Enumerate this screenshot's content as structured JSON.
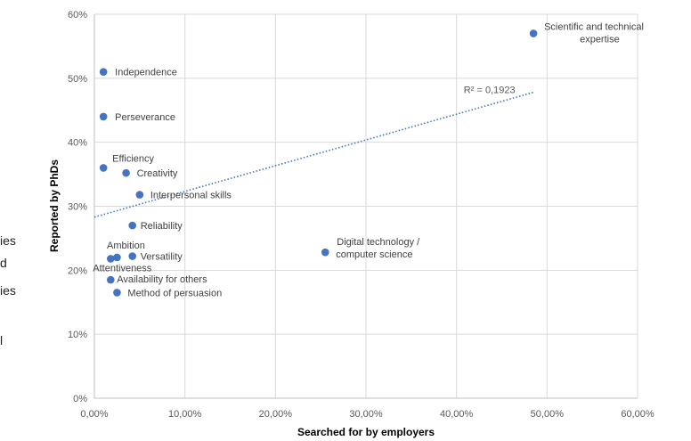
{
  "chart_data": {
    "type": "scatter",
    "xlabel": "Searched for by employers",
    "ylabel": "Reported by PhDs",
    "xlim": [
      0,
      60
    ],
    "ylim": [
      0,
      60
    ],
    "x_ticks": [
      "0,00%",
      "10,00%",
      "20,00%",
      "30,00%",
      "40,00%",
      "50,00%",
      "60,00%"
    ],
    "y_ticks": [
      "0%",
      "10%",
      "20%",
      "30%",
      "40%",
      "50%",
      "60%"
    ],
    "grid": true,
    "legend": "none",
    "color": "#4472C4",
    "points": [
      {
        "label": "Scientific and technical expertise",
        "x": 48.5,
        "y": 57.0
      },
      {
        "label": "Independence",
        "x": 1.0,
        "y": 51.0
      },
      {
        "label": "Perseverance",
        "x": 1.0,
        "y": 44.0
      },
      {
        "label": "Efficiency",
        "x": 1.0,
        "y": 36.0
      },
      {
        "label": "Creativity",
        "x": 3.5,
        "y": 35.2
      },
      {
        "label": "Interpersonal skills",
        "x": 5.0,
        "y": 31.8
      },
      {
        "label": "Reliability",
        "x": 4.2,
        "y": 27.0
      },
      {
        "label": "Ambition",
        "x": 2.5,
        "y": 22.0
      },
      {
        "label": "Versatility",
        "x": 4.2,
        "y": 22.2
      },
      {
        "label": "Attentiveness",
        "x": 1.8,
        "y": 21.8
      },
      {
        "label": "Availability for others",
        "x": 1.8,
        "y": 18.5
      },
      {
        "label": "Method of persuasion",
        "x": 2.5,
        "y": 16.5
      },
      {
        "label": "Digital technology / computer science",
        "x": 25.5,
        "y": 22.8
      }
    ],
    "trendline": {
      "type": "linear",
      "x": [
        0,
        48.5
      ],
      "y": [
        28.3,
        47.8
      ],
      "label": "R² = 0,1923"
    }
  },
  "left_fragments": [
    "ies",
    "d",
    "ies",
    "l"
  ]
}
